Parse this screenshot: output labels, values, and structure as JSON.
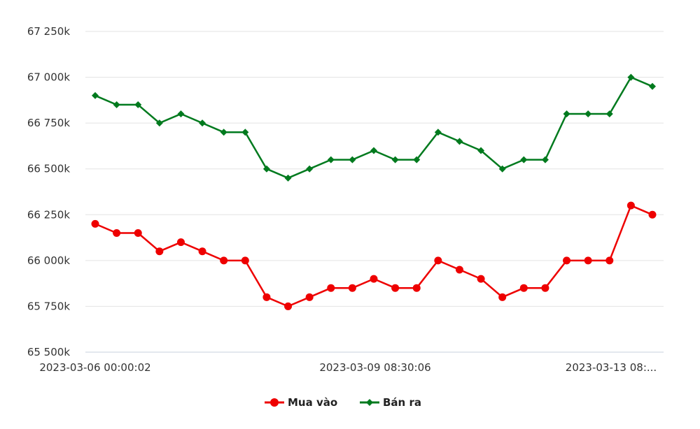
{
  "chart_data": {
    "type": "line",
    "x_labels_shown": [
      "2023-03-06 00:00:02",
      "2023-03-09 08:30:06",
      "2023-03-13 08:..."
    ],
    "ylim": [
      65500,
      67250
    ],
    "y_ticks": [
      65500,
      65750,
      66000,
      66250,
      66500,
      66750,
      67000,
      67250
    ],
    "y_tick_labels": [
      "65 500k",
      "65 750k",
      "66 000k",
      "66 250k",
      "66 500k",
      "66 750k",
      "67 000k",
      "67 250k"
    ],
    "grid": "horizontal",
    "legend_position": "bottom-center",
    "series": [
      {
        "name": "Mua vào",
        "color": "#ee0000",
        "marker": "circle",
        "values": [
          66200,
          66150,
          66150,
          66050,
          66100,
          66050,
          66000,
          66000,
          65800,
          65750,
          65800,
          65850,
          65850,
          65900,
          65850,
          65850,
          66000,
          65950,
          65900,
          65800,
          65850,
          65850,
          66000,
          66000,
          66000,
          66300,
          66250
        ]
      },
      {
        "name": "Bán ra",
        "color": "#007a1e",
        "marker": "diamond",
        "values": [
          66900,
          66850,
          66850,
          66750,
          66800,
          66750,
          66700,
          66700,
          66500,
          66450,
          66500,
          66550,
          66550,
          66600,
          66550,
          66550,
          66700,
          66650,
          66600,
          66500,
          66550,
          66550,
          66800,
          66800,
          66800,
          67000,
          66950
        ]
      }
    ]
  }
}
